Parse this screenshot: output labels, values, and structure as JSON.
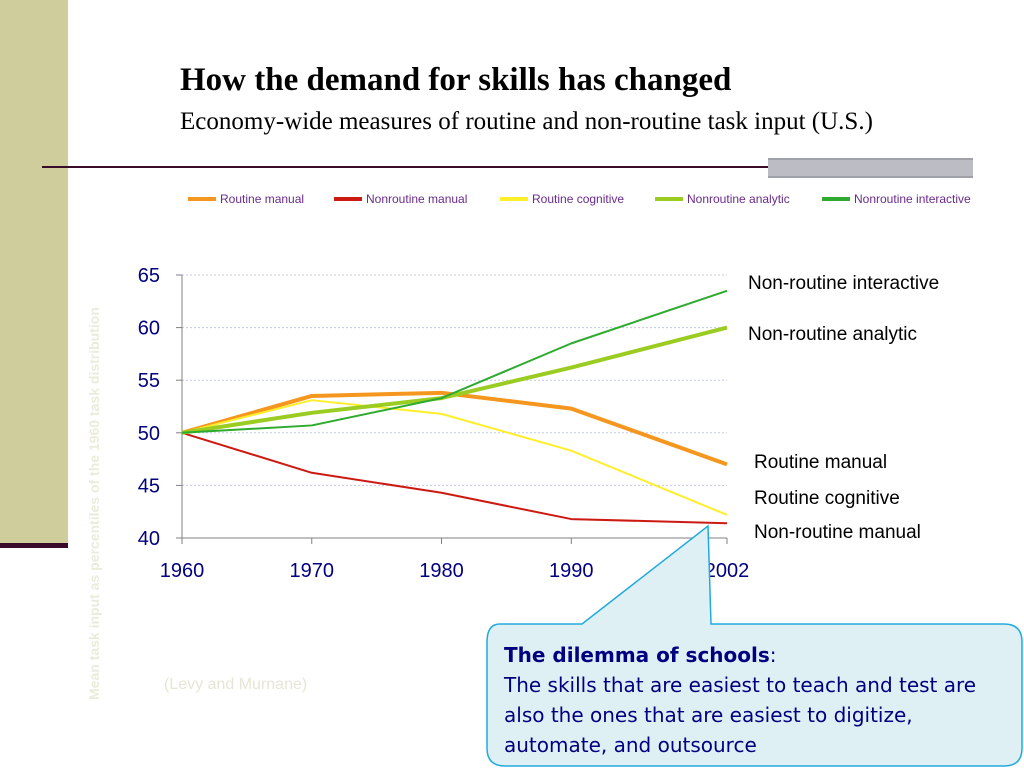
{
  "slide": {
    "title": "How the demand for skills has changed",
    "subtitle": "Economy-wide measures of routine and non-routine task input (U.S.)",
    "vertical_axis_text": "Mean task input as percentiles of the 1960 task distribution",
    "source": "(Levy and Murnane)"
  },
  "callout": {
    "heading": "The dilemma of schools",
    "heading_suffix": ":",
    "body": "The skills that are easiest to teach and test are also the ones that are easiest to digitize, automate, and outsource"
  },
  "chart_data": {
    "type": "line",
    "x": [
      1960,
      1970,
      1980,
      1990,
      2002
    ],
    "ylim": [
      40,
      65
    ],
    "yticks": [
      40,
      45,
      50,
      55,
      60,
      65
    ],
    "xticks": [
      "1960",
      "1970",
      "1980",
      "1990",
      "2002"
    ],
    "grid": true,
    "legend_position": "top",
    "series": [
      {
        "name": "Routine manual",
        "color": "#f5961e",
        "values": [
          50,
          53.5,
          53.8,
          52.3,
          47
        ]
      },
      {
        "name": "Nonroutine manual",
        "color": "#cc1a12",
        "values": [
          50,
          46.2,
          44.3,
          41.8,
          41.4
        ]
      },
      {
        "name": "Routine cognitive",
        "color": "#ffee2a",
        "values": [
          50,
          53.1,
          51.8,
          48.3,
          42.2
        ]
      },
      {
        "name": "Nonroutine analytic",
        "color": "#9acc22",
        "values": [
          50,
          51.9,
          53.3,
          56.2,
          60
        ]
      },
      {
        "name": "Nonroutine interactive",
        "color": "#2eaa2e",
        "values": [
          50,
          50.7,
          53.3,
          58.5,
          63.5
        ]
      }
    ],
    "annotations": [
      {
        "text": "Non-routine interactive",
        "series": "Nonroutine interactive"
      },
      {
        "text": "Non-routine analytic",
        "series": "Nonroutine analytic"
      },
      {
        "text": "Routine manual",
        "series": "Routine manual"
      },
      {
        "text": "Routine cognitive",
        "series": "Routine cognitive"
      },
      {
        "text": "Non-routine manual",
        "series": "Nonroutine manual"
      }
    ],
    "colors": {
      "tick_text": "#000080",
      "axis": "#808080",
      "grid": "#c0c8e8",
      "callout_fill": "#dff0f4",
      "callout_border": "#22aadd"
    }
  }
}
